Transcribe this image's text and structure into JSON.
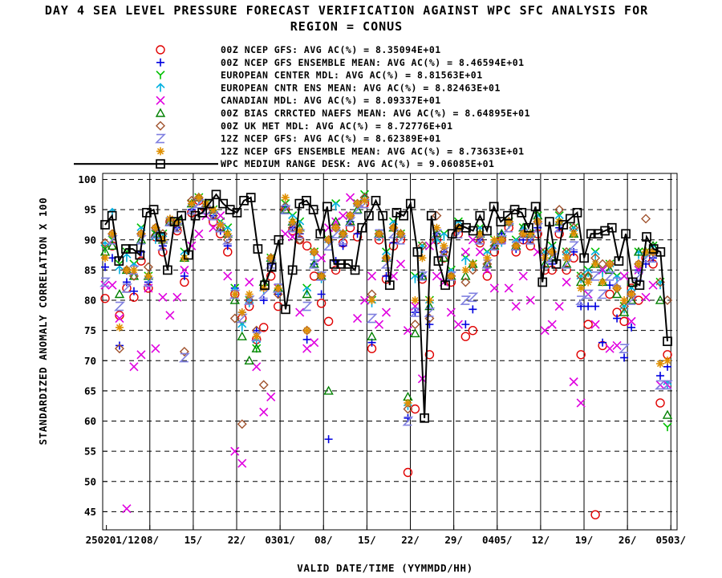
{
  "chart_data": {
    "type": "scatter",
    "title_line1": "DAY 4 SEA LEVEL PRESSURE FORECAST VERIFICATION AGAINST WPC SFC ANALYSIS FOR",
    "title_line2": "REGION = CONUS",
    "xlabel": "VALID DATE/TIME (YYMMDD/HH)",
    "ylabel": "STANDARDIZED ANOMALY CORRELATION X 100",
    "ylim": [
      42,
      101
    ],
    "yticks": [
      45,
      50,
      55,
      60,
      65,
      70,
      75,
      80,
      85,
      90,
      95,
      100
    ],
    "grid": true,
    "legend_position": "top",
    "x_tick_labels": [
      {
        "day": 0,
        "label": "250201/12"
      },
      {
        "day": 7,
        "label": "08/"
      },
      {
        "day": 14,
        "label": "15/"
      },
      {
        "day": 21,
        "label": "22/"
      },
      {
        "day": 28,
        "label": "0301/"
      },
      {
        "day": 35,
        "label": "08/"
      },
      {
        "day": 42,
        "label": "15/"
      },
      {
        "day": 49,
        "label": "22/"
      },
      {
        "day": 56,
        "label": "29/"
      },
      {
        "day": 63,
        "label": "0405/"
      },
      {
        "day": 70,
        "label": "12/"
      },
      {
        "day": 77,
        "label": "19/"
      },
      {
        "day": 84,
        "label": "26/"
      },
      {
        "day": 91,
        "label": "0503/"
      }
    ],
    "xlim_days": [
      -0.6,
      92
    ],
    "series": [
      {
        "name": "00Z NCEP GFS",
        "avg_label": "AVG AC(%) =",
        "avg_value": "8.35094E+01",
        "marker": "circle",
        "color": "#e00000",
        "values": [
          80.3,
          89,
          77.5,
          82,
          80.5,
          86.5,
          82,
          90.5,
          88,
          93,
          91.5,
          83,
          94.5,
          96.5,
          95,
          93,
          91,
          88,
          81,
          77,
          79,
          73.5,
          75.5,
          84,
          79,
          95,
          91.5,
          90,
          89,
          84,
          79.5,
          76.5,
          85,
          89.5,
          92,
          90.5,
          96,
          72,
          90,
          83.5,
          89,
          90,
          51.5,
          62,
          83.5,
          71,
          90,
          87,
          83,
          91,
          74,
          75,
          89.5,
          84,
          88,
          90,
          92,
          88,
          90,
          89,
          91,
          85,
          85,
          91,
          85,
          87,
          71,
          76,
          44.5,
          72.5,
          81,
          78,
          76.5,
          82,
          80,
          87,
          86,
          63,
          71
        ]
      },
      {
        "name": "00Z NCEP GFS ENSEMBLE MEAN",
        "avg_label": "AVG AC(%) =",
        "avg_value": "8.46594E+01",
        "marker": "plus",
        "color": "#0000e0",
        "values": [
          85.5,
          87,
          72.5,
          83,
          81.5,
          88,
          83,
          91.5,
          89,
          93.5,
          92,
          84,
          95,
          96.5,
          95.5,
          94,
          91.5,
          89,
          82,
          78,
          80,
          75,
          80,
          86,
          81,
          95.5,
          92,
          91,
          73.5,
          86,
          81,
          57,
          86.5,
          89,
          93,
          91,
          96.5,
          73,
          90.5,
          84,
          89.5,
          90.5,
          60.5,
          78,
          84,
          76,
          91,
          88,
          84,
          91.5,
          76,
          78.5,
          90,
          85.5,
          89,
          91,
          92.5,
          88.5,
          90,
          90,
          92,
          87,
          86,
          92,
          87,
          88,
          79,
          79,
          79,
          73,
          82.5,
          77,
          70.5,
          75.5,
          85,
          86,
          87,
          67.5,
          69
        ]
      },
      {
        "name": "EUROPEAN CENTER MDL",
        "avg_label": "AVG AC(%) =",
        "avg_value": "8.81563E+01",
        "marker": "Y",
        "color": "#00c000",
        "values": [
          88.5,
          90,
          86,
          88,
          86,
          92,
          84,
          91,
          91,
          93,
          93,
          88,
          96,
          97,
          96,
          95,
          93,
          92,
          82,
          76,
          80,
          72,
          82,
          87,
          82,
          96,
          94,
          93,
          82,
          88,
          84,
          90,
          96,
          91,
          94,
          96,
          97.5,
          80,
          91,
          88,
          93,
          91,
          63,
          84,
          89,
          80,
          90,
          91,
          85,
          93,
          87,
          86,
          92,
          88,
          90,
          90,
          93,
          90,
          92,
          91,
          94,
          88,
          89,
          94,
          88,
          92,
          84,
          85,
          88,
          85,
          86,
          84,
          79,
          82,
          88,
          88,
          89,
          83,
          59
        ]
      },
      {
        "name": "EUROPEAN CNTR ENS MEAN",
        "avg_label": "AVG AC(%) =",
        "avg_value": "8.82463E+01",
        "marker": "arrowup",
        "color": "#00b0e0",
        "values": [
          89,
          94.5,
          85,
          87,
          85.5,
          91.5,
          83.5,
          90,
          90.5,
          93,
          92.5,
          87.5,
          95.5,
          96.5,
          95.5,
          94.5,
          92.5,
          91.5,
          81.5,
          75.5,
          79.5,
          73,
          81.5,
          86.5,
          81.5,
          95.5,
          93.5,
          92.5,
          81.5,
          87.5,
          83.5,
          89.5,
          95.5,
          90.5,
          93.5,
          95.5,
          97,
          79.5,
          90.5,
          87.5,
          92.5,
          90.5,
          62.5,
          83.5,
          88.5,
          79.5,
          89.5,
          90.5,
          84.5,
          92.5,
          86.5,
          85.5,
          91.5,
          87.5,
          89.5,
          89.5,
          92.5,
          89.5,
          91.5,
          90.5,
          93.5,
          87.5,
          88.5,
          93.5,
          87.5,
          91.5,
          83.5,
          84.5,
          87.5,
          84.5,
          85.5,
          83.5,
          78.5,
          81.5,
          87.5,
          87.5,
          88.5,
          82.5,
          66
        ]
      },
      {
        "name": "CANADIAN MDL",
        "avg_label": "AVG AC(%) =",
        "avg_value": "8.09337E+01",
        "marker": "x",
        "color": "#e000e0",
        "values": [
          82.5,
          82.5,
          77,
          45.5,
          69,
          71,
          82,
          72,
          80.5,
          77.5,
          80.5,
          85,
          89,
          91,
          94,
          92,
          94,
          84,
          55,
          53,
          83,
          69,
          61.5,
          64,
          82,
          91,
          90.5,
          78,
          72,
          73,
          87,
          92,
          93,
          94,
          97,
          77,
          80,
          84,
          76,
          78,
          84,
          86,
          75,
          79,
          67,
          89,
          84,
          83,
          78,
          76,
          88,
          90,
          88,
          85,
          82,
          90,
          82,
          79,
          84,
          80,
          88,
          75,
          76,
          79,
          83,
          66.5,
          63,
          81,
          76,
          85,
          72,
          72.5,
          84,
          76.5,
          85,
          80.5,
          82.5,
          66,
          66
        ]
      },
      {
        "name": "00Z BIAS CRRCTED NAEFS MEAN",
        "avg_label": "AVG AC(%) =",
        "avg_value": "8.64895E+01",
        "marker": "triangle",
        "color": "#008000",
        "values": [
          88,
          89,
          81,
          85,
          84,
          90,
          84,
          91,
          90,
          93,
          93,
          87,
          96,
          97,
          96,
          95,
          92,
          91,
          80,
          74,
          70,
          72,
          83,
          87,
          82,
          95,
          93,
          92,
          81,
          86,
          84,
          65,
          93,
          91,
          93,
          95,
          97,
          74,
          91,
          87,
          92,
          91,
          64,
          74.5,
          84,
          79,
          91,
          87,
          84,
          92,
          84,
          86,
          91,
          86,
          89,
          91,
          93,
          89,
          92,
          91,
          94,
          86,
          87,
          93,
          86,
          91,
          83,
          84,
          86,
          83,
          85,
          81,
          78,
          80,
          88,
          88,
          89,
          80,
          61
        ]
      },
      {
        "name": "00Z UK MET MDL",
        "avg_label": "AVG AC(%) =",
        "avg_value": "8.72776E+01",
        "marker": "diamond",
        "color": "#a0522d",
        "values": [
          89.5,
          91,
          72,
          85,
          84,
          91,
          85.5,
          92,
          91,
          93,
          92,
          71.5,
          96.5,
          97,
          95.5,
          94,
          92,
          90,
          77,
          59.5,
          80,
          75,
          66,
          87,
          81,
          95.5,
          92,
          90,
          75,
          88,
          84,
          90,
          92,
          91,
          94,
          96,
          97,
          81,
          91,
          87,
          92,
          91,
          62,
          76,
          89,
          77,
          94,
          88,
          84,
          92,
          83,
          85,
          90,
          86,
          89,
          90,
          93,
          89,
          91,
          90,
          93,
          88,
          88,
          95,
          88,
          92,
          84,
          84,
          87,
          86,
          86,
          82,
          79,
          81,
          86,
          93.5,
          88,
          83,
          80
        ]
      },
      {
        "name": "12Z NCEP GFS",
        "avg_label": "AVG AC(%) =",
        "avg_value": "8.62389E+01",
        "marker": "Z",
        "color": "#8080e0",
        "values": [
          83,
          90,
          79,
          82,
          85,
          90,
          83,
          91,
          89,
          93,
          92,
          70.5,
          95,
          96,
          95,
          94,
          92,
          90,
          81,
          77,
          80,
          74,
          81,
          86,
          82,
          95,
          92,
          91,
          79,
          86,
          84,
          89,
          91,
          90,
          93,
          95,
          96,
          77,
          91,
          86,
          91,
          90,
          60,
          78,
          84,
          78,
          91,
          88,
          84,
          91,
          80,
          80.5,
          90,
          86,
          89,
          90,
          92,
          89,
          91,
          90,
          92,
          86,
          87,
          92,
          86,
          89,
          80,
          81,
          84,
          81,
          84,
          83,
          72,
          80,
          84,
          87,
          87,
          66,
          66
        ]
      },
      {
        "name": "12Z NCEP GFS ENSEMBLE MEAN",
        "avg_label": "AVG AC(%) =",
        "avg_value": "8.73633E+01",
        "marker": "star",
        "color": "#e09000",
        "values": [
          87,
          91,
          75.5,
          85,
          85,
          91,
          84,
          92,
          90,
          93.5,
          93,
          87,
          96,
          97,
          96,
          95,
          92.5,
          91,
          81,
          78,
          81,
          74,
          82,
          87,
          82,
          97,
          93,
          91.5,
          75,
          88,
          84,
          90,
          92,
          91,
          94,
          96,
          96.5,
          80,
          91,
          87,
          92,
          91,
          63,
          80,
          87,
          80,
          92,
          89,
          84,
          92,
          85,
          86,
          91,
          87,
          90,
          90,
          93,
          89,
          91,
          91,
          93,
          87,
          88,
          93,
          87,
          91,
          82,
          83,
          86,
          83,
          86,
          82,
          80,
          81,
          86,
          88,
          88,
          69.5,
          70
        ]
      },
      {
        "name": "WPC MEDIUM RANGE DESK",
        "avg_label": "AVG AC(%) =",
        "avg_value": "9.06085E+01",
        "marker": "square",
        "color": "#000000",
        "line": true,
        "values": [
          92.5,
          94,
          86.5,
          88.5,
          88.5,
          87.5,
          94.5,
          95,
          90.5,
          85,
          93,
          94,
          87.5,
          94,
          94.5,
          96,
          97.5,
          96,
          95,
          94.5,
          96.5,
          97,
          88.5,
          82.5,
          85.5,
          90,
          78.5,
          85,
          96,
          96.5,
          95,
          91,
          95.5,
          86,
          86,
          86,
          85,
          92,
          94,
          96.5,
          94,
          82.5,
          94.5,
          94,
          96,
          88,
          60.5,
          94,
          86.5,
          82.5,
          91,
          92.5,
          92,
          91.5,
          94,
          91.5,
          95.5,
          93,
          94,
          95,
          94.5,
          92,
          95.5,
          83,
          93,
          86,
          92.5,
          93.5,
          94.5,
          87,
          91,
          91,
          91.5,
          92,
          86.5,
          91,
          83,
          82.5,
          90.5,
          88.5,
          88,
          73.2
        ]
      }
    ]
  }
}
